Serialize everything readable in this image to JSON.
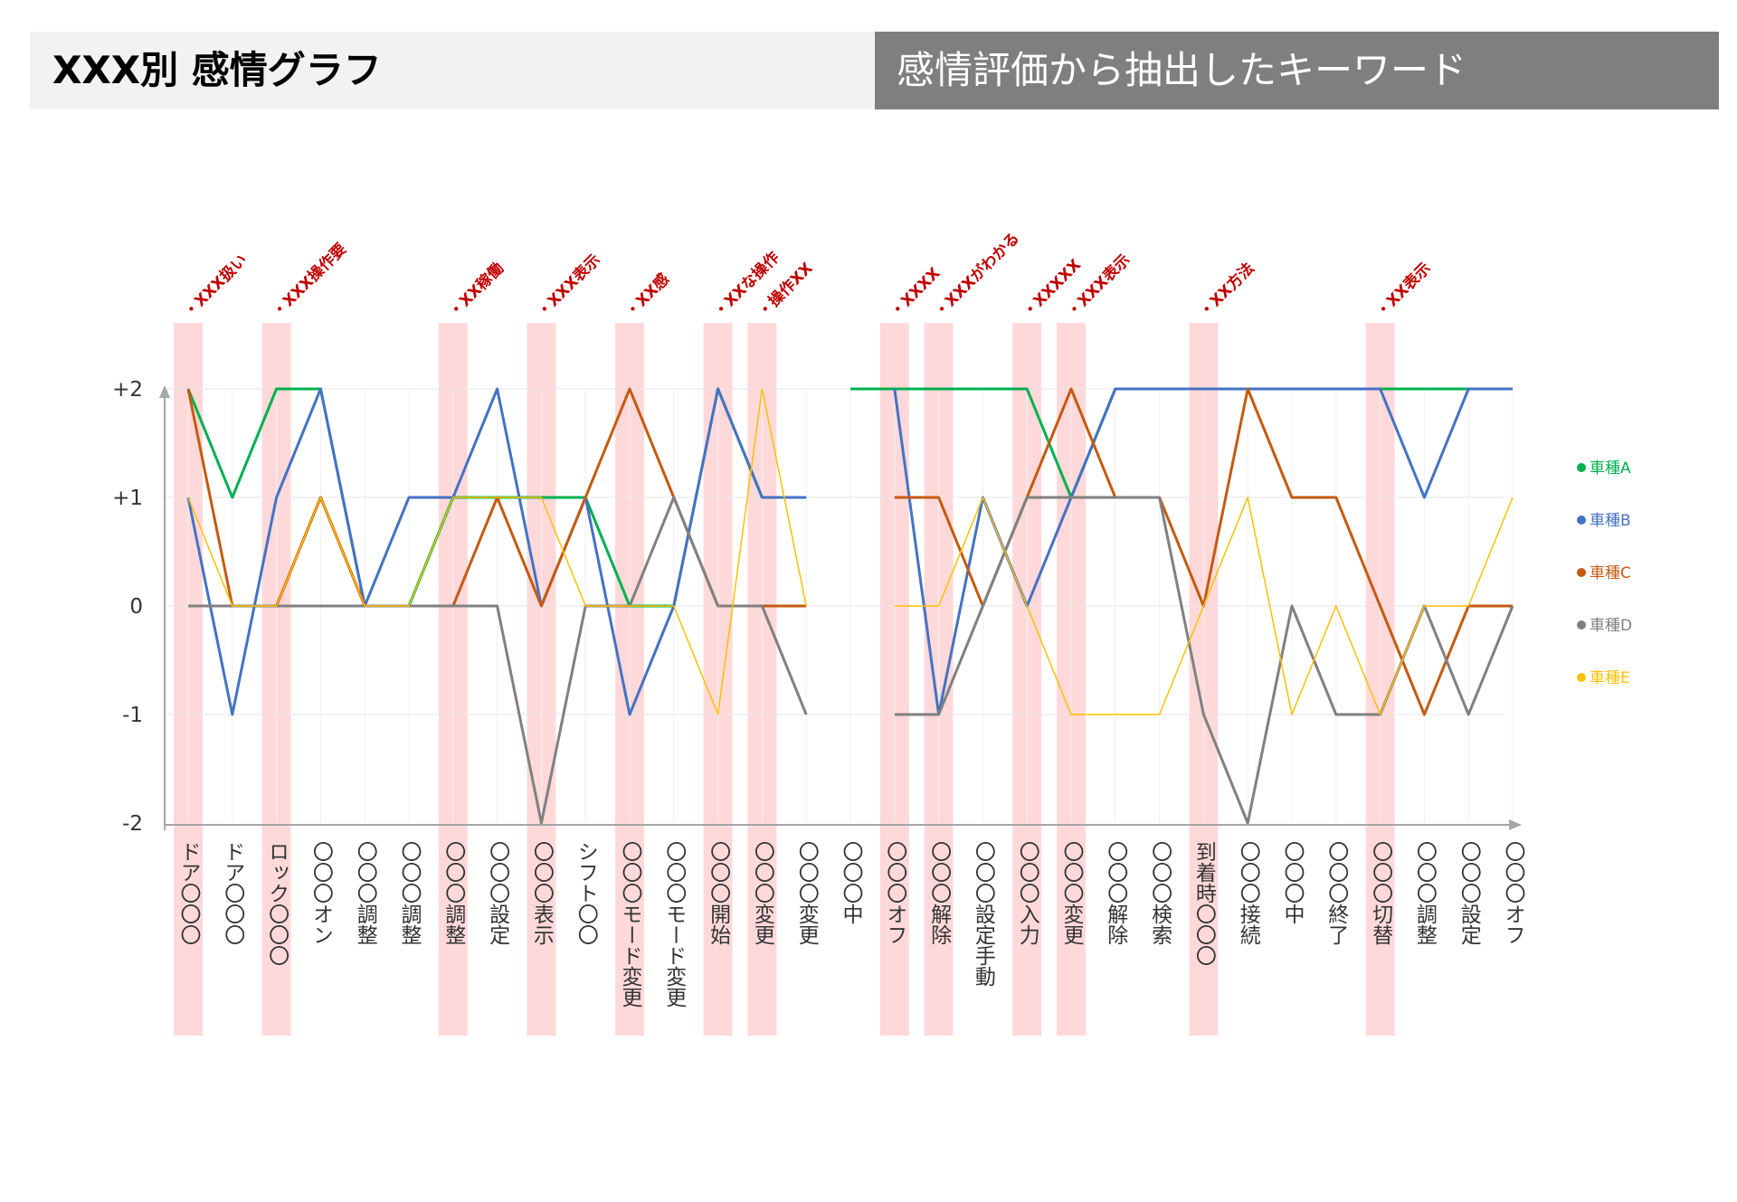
{
  "header": {
    "title": "XXX別 感情グラフ",
    "keywords_title": "感情評価から抽出したキーワード"
  },
  "chart_data": {
    "type": "line",
    "title": "XXX別 感情グラフ",
    "categories": [
      "ドア〇〇〇",
      "ドア〇〇〇",
      "ロック〇〇〇",
      "〇〇〇オン",
      "〇〇〇調整",
      "〇〇〇調整",
      "〇〇〇調整",
      "〇〇〇設定",
      "〇〇〇表示",
      "シフト〇〇",
      "〇〇〇モード変更",
      "〇〇〇モード変更",
      "〇〇〇開始",
      "〇〇〇変更",
      "〇〇〇変更",
      "〇〇〇中",
      "〇〇〇オフ",
      "〇〇〇解除",
      "〇〇〇設定手動",
      "〇〇〇入力",
      "〇〇〇変更",
      "〇〇〇解除",
      "〇〇〇検索",
      "到着時〇〇〇",
      "〇〇〇接続",
      "〇〇〇中",
      "〇〇〇終了",
      "〇〇〇切替",
      "〇〇〇調整",
      "〇〇〇設定",
      "〇〇〇オフ"
    ],
    "y_tick_labels": [
      "+2",
      "+1",
      "0",
      "-1",
      "-2"
    ],
    "ylim": [
      -2,
      2
    ],
    "series": [
      {
        "name": "車種A",
        "color": "#00b050",
        "width": 3,
        "values": [
          2,
          1,
          2,
          2,
          0,
          0,
          1,
          1,
          1,
          1,
          0,
          0,
          2,
          1,
          null,
          2,
          2,
          2,
          2,
          2,
          1,
          2,
          2,
          2,
          2,
          2,
          2,
          2,
          2,
          2,
          null
        ]
      },
      {
        "name": "車種B",
        "color": "#4472c4",
        "width": 3,
        "values": [
          1,
          -1,
          1,
          2,
          0,
          1,
          1,
          2,
          0,
          1,
          -1,
          0,
          2,
          1,
          1,
          null,
          2,
          -1,
          1,
          0,
          1,
          2,
          2,
          2,
          2,
          2,
          2,
          2,
          1,
          2,
          2
        ]
      },
      {
        "name": "車種C",
        "color": "#c55a11",
        "width": 3,
        "values": [
          2,
          0,
          0,
          1,
          0,
          0,
          0,
          1,
          0,
          1,
          2,
          1,
          0,
          0,
          0,
          null,
          1,
          1,
          0,
          1,
          2,
          1,
          1,
          0,
          2,
          1,
          1,
          0,
          -1,
          0,
          0
        ]
      },
      {
        "name": "車種D",
        "color": "#808080",
        "width": 3,
        "values": [
          0,
          0,
          0,
          0,
          0,
          0,
          0,
          0,
          -2,
          0,
          0,
          1,
          0,
          0,
          -1,
          null,
          -1,
          -1,
          0,
          1,
          1,
          1,
          1,
          -1,
          -2,
          0,
          -1,
          -1,
          0,
          -1,
          0
        ]
      },
      {
        "name": "車種E",
        "color": "#ffc000",
        "width": 1.5,
        "values": [
          1,
          0,
          0,
          1,
          0,
          0,
          1,
          1,
          1,
          0,
          0,
          0,
          -1,
          2,
          0,
          null,
          0,
          0,
          1,
          0,
          -1,
          -1,
          -1,
          0,
          1,
          -1,
          0,
          -1,
          0,
          0,
          1
        ]
      }
    ],
    "legend_position": "right",
    "highlights": [
      {
        "category_index": 0,
        "keyword": "・XXX扱い"
      },
      {
        "category_index": 2,
        "keyword": "・XXX操作要"
      },
      {
        "category_index": 6,
        "keyword": "・XX稼働"
      },
      {
        "category_index": 8,
        "keyword": "・XXX表示"
      },
      {
        "category_index": 10,
        "keyword": "・XX感"
      },
      {
        "category_index": 12,
        "keyword": "・XXな操作"
      },
      {
        "category_index": 13,
        "keyword": "・操作XX"
      },
      {
        "category_index": 16,
        "keyword": "・XXXX"
      },
      {
        "category_index": 17,
        "keyword": "・XXXがわかる"
      },
      {
        "category_index": 19,
        "keyword": "・XXXXX"
      },
      {
        "category_index": 20,
        "keyword": "・XXX表示"
      },
      {
        "category_index": 23,
        "keyword": "・XX方法"
      },
      {
        "category_index": 27,
        "keyword": "・XX表示"
      }
    ]
  }
}
